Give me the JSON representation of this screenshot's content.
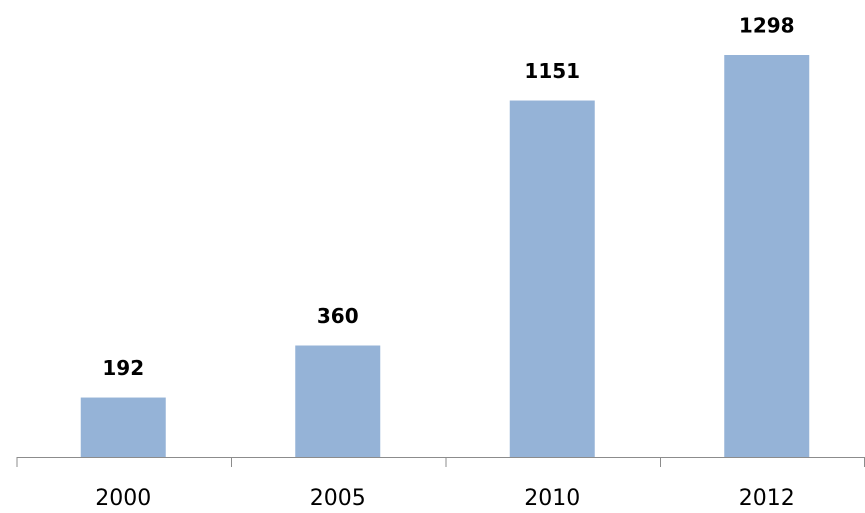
{
  "chart_data": {
    "type": "bar",
    "categories": [
      "2000",
      "2005",
      "2010",
      "2012"
    ],
    "values": [
      192,
      360,
      1151,
      1298
    ],
    "color": "#95b3d7"
  }
}
